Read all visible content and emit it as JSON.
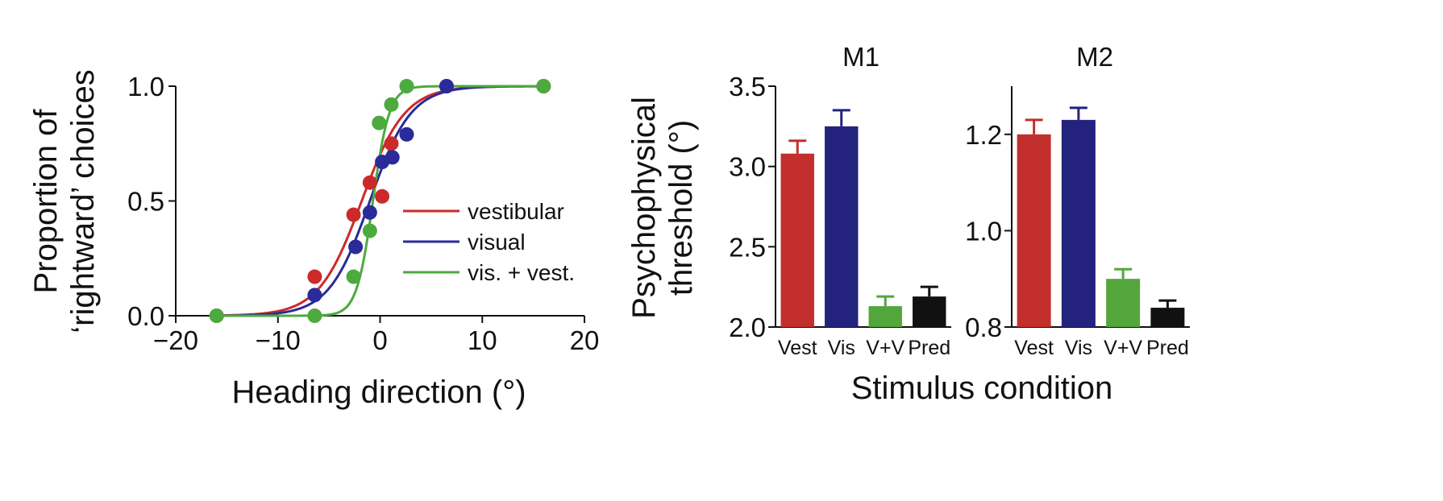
{
  "chart_data": [
    {
      "type": "scatter",
      "panel": "psychometric",
      "xlabel": "Heading direction (°)",
      "ylabel_lines": [
        "Proportion of",
        "‘rightward’ choices"
      ],
      "xlim": [
        -20,
        20
      ],
      "ylim": [
        0,
        1
      ],
      "x_ticks": [
        -20,
        -10,
        0,
        10,
        20
      ],
      "x_tick_labels": [
        "−20",
        "−10",
        "0",
        "10",
        "20"
      ],
      "y_ticks": [
        0,
        0.5,
        1
      ],
      "y_tick_labels": [
        "0.0",
        "0.5",
        "1.0"
      ],
      "legend_placement": "center-right",
      "series": [
        {
          "name": "vestibular",
          "color": "#cc2a2a",
          "fit_center": -1.8,
          "fit_scale": 2.1,
          "x": [
            -16,
            -6.4,
            -2.6,
            -1.0,
            0.2,
            1.1,
            6.5,
            16
          ],
          "y": [
            0.0,
            0.17,
            0.44,
            0.58,
            0.52,
            0.75,
            1.0,
            1.0
          ]
        },
        {
          "name": "visual",
          "color": "#2a2a9a",
          "fit_center": -1.0,
          "fit_scale": 2.0,
          "x": [
            -6.4,
            -2.4,
            -1.0,
            0.2,
            1.2,
            2.6,
            6.5
          ],
          "y": [
            0.09,
            0.3,
            0.45,
            0.67,
            0.69,
            0.79,
            1.0
          ]
        },
        {
          "name": "vis. + vest.",
          "color": "#4caa3e",
          "fit_center": -0.7,
          "fit_scale": 0.8,
          "x": [
            -16,
            -6.4,
            -2.6,
            -1.0,
            -0.1,
            1.1,
            2.6,
            16
          ],
          "y": [
            0.0,
            0.0,
            0.17,
            0.37,
            0.84,
            0.92,
            1.0,
            1.0
          ]
        }
      ]
    },
    {
      "type": "bar",
      "panel": "M1",
      "title": "M1",
      "ylabel_lines": [
        "Psychophysical",
        "threshold (°)"
      ],
      "categories": [
        "Vest",
        "Vis",
        "V+V",
        "Pred"
      ],
      "colors": [
        "#c22f2c",
        "#23237d",
        "#52a63c",
        "#111111"
      ],
      "values": [
        3.08,
        3.25,
        2.13,
        2.19
      ],
      "errors": [
        0.08,
        0.1,
        0.06,
        0.06
      ],
      "ylim": [
        2.0,
        3.5
      ],
      "y_ticks": [
        2.0,
        2.5,
        3.0,
        3.5
      ],
      "y_tick_labels": [
        "2.0",
        "2.5",
        "3.0",
        "3.5"
      ]
    },
    {
      "type": "bar",
      "panel": "M2",
      "title": "M2",
      "categories": [
        "Vest",
        "Vis",
        "V+V",
        "Pred"
      ],
      "colors": [
        "#c22f2c",
        "#23237d",
        "#52a63c",
        "#111111"
      ],
      "values": [
        1.2,
        1.23,
        0.9,
        0.84
      ],
      "errors": [
        0.03,
        0.025,
        0.02,
        0.015
      ],
      "ylim": [
        0.8,
        1.3
      ],
      "y_ticks": [
        0.8,
        1.0,
        1.2
      ],
      "y_tick_labels": [
        "0.8",
        "1.0",
        "1.2"
      ]
    }
  ],
  "shared_xlabel": "Stimulus condition"
}
